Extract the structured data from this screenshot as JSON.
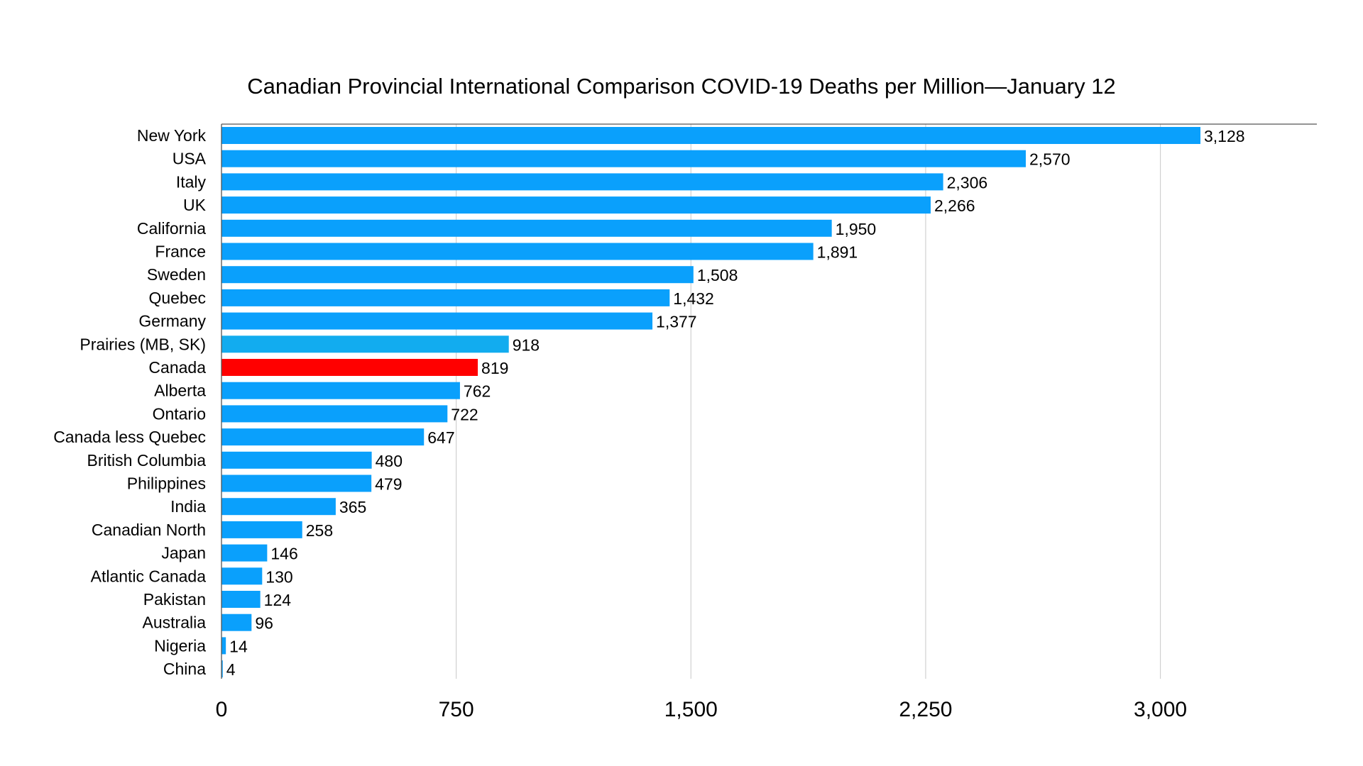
{
  "chart_data": {
    "type": "bar",
    "orientation": "horizontal",
    "title": "Canadian Provincial International Comparison COVID-19 Deaths per Million—January 12",
    "xlabel": "",
    "ylabel": "",
    "xlim": [
      0,
      3500
    ],
    "x_ticks": [
      0,
      750,
      1500,
      2250,
      3000
    ],
    "x_tick_labels": [
      "0",
      "750",
      "1,500",
      "2,250",
      "3,000"
    ],
    "grid": "vertical",
    "legend": "none",
    "categories": [
      "New York",
      "USA",
      "Italy",
      "UK",
      "California",
      "France",
      "Sweden",
      "Quebec",
      "Germany",
      "Prairies (MB, SK)",
      "Canada",
      "Alberta",
      "Ontario",
      "Canada less Quebec",
      "British Columbia",
      "Philippines",
      "India",
      "Canadian North",
      "Japan",
      "Atlantic Canada",
      "Pakistan",
      "Australia",
      "Nigeria",
      "China"
    ],
    "values": [
      3128,
      2570,
      2306,
      2266,
      1950,
      1891,
      1508,
      1432,
      1377,
      918,
      819,
      762,
      722,
      647,
      480,
      479,
      365,
      258,
      146,
      130,
      124,
      96,
      14,
      4
    ],
    "value_labels": [
      "3,128",
      "2,570",
      "2,306",
      "2,266",
      "1,950",
      "1,891",
      "1,508",
      "1,432",
      "1,377",
      "918",
      "819",
      "762",
      "722",
      "647",
      "480",
      "479",
      "365",
      "258",
      "146",
      "130",
      "124",
      "96",
      "14",
      "4"
    ],
    "colors": {
      "default": "#0aa0fc",
      "prairies": "#12acef",
      "highlight": "#ff0000"
    },
    "highlight_category": "Canada",
    "secondary_category": "Prairies (MB, SK)"
  }
}
